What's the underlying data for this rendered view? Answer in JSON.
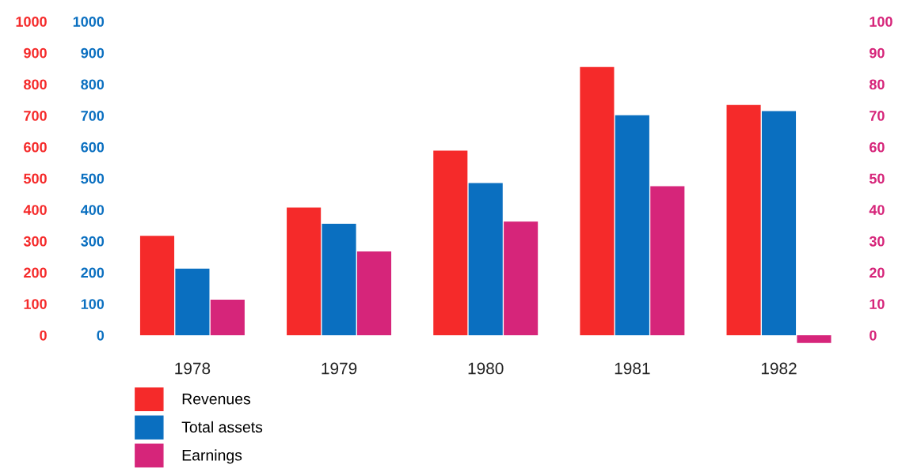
{
  "chart_data": {
    "type": "bar",
    "categories": [
      "1978",
      "1979",
      "1980",
      "1981",
      "1982"
    ],
    "series": [
      {
        "name": "Revenues",
        "color": "#f52a2a",
        "values": [
          317,
          407,
          588,
          855,
          734
        ]
      },
      {
        "name": "Total assets",
        "color": "#0a6fc0",
        "values": [
          212,
          355,
          485,
          701,
          714
        ],
        "axis": "y2"
      },
      {
        "name": "Earnings",
        "color": "#d6257a",
        "values": [
          11.3,
          26.7,
          36.2,
          47.5,
          -2.5
        ],
        "axis": "y3"
      }
    ],
    "ylim": [
      -30,
      1000
    ],
    "yticks": [
      0,
      100,
      200,
      300,
      400,
      500,
      600,
      700,
      800,
      900,
      1000
    ],
    "y2lim": [
      -30,
      1000
    ],
    "y2ticks": [
      0,
      100,
      200,
      300,
      400,
      500,
      600,
      700,
      800,
      900,
      1000
    ],
    "y3lim": [
      -3,
      100
    ],
    "y3ticks": [
      0,
      10,
      20,
      30,
      40,
      50,
      60,
      70,
      80,
      90,
      100
    ],
    "grid": false,
    "legend": "bottom left"
  }
}
